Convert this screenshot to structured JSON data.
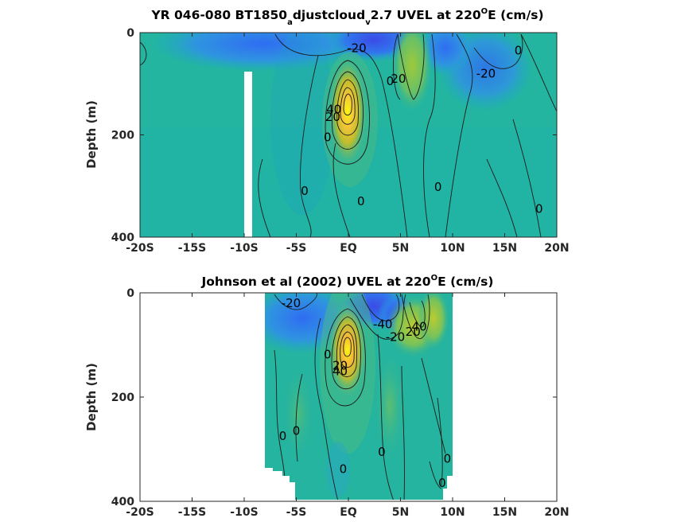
{
  "chart_data": [
    {
      "type": "heatmap",
      "title": {
        "pre": "YR 046-080 BT1850",
        "sub1": "a",
        "mid": "djustcloud",
        "sub2": "v",
        "post": "2.7 UVEL at 220",
        "sup": "O",
        "tail": "E (cm/s)"
      },
      "ylabel": "Depth (m)",
      "xlim": [
        -20,
        20
      ],
      "ylim": [
        400,
        0
      ],
      "xticklabels": [
        "-20S",
        "-15S",
        "-10S",
        "-5S",
        "EQ",
        "5N",
        "10N",
        "15N",
        "20N"
      ],
      "yticklabels": [
        "0",
        "200",
        "400"
      ],
      "data_extent_x": [
        -20,
        20
      ],
      "masked_columns": [
        {
          "x": [
            -10.1,
            -9.3
          ],
          "depth": [
            75,
            400
          ]
        }
      ],
      "features": [
        {
          "kind": "max",
          "lat": 0.0,
          "depth": 140,
          "value": 60
        },
        {
          "kind": "max",
          "lat": 6.3,
          "depth": 55,
          "value": 22
        },
        {
          "kind": "min",
          "lat": 2.0,
          "depth": 20,
          "value": -35
        },
        {
          "kind": "min",
          "lat": -6.0,
          "depth": 30,
          "value": -30
        },
        {
          "kind": "min",
          "lat": 11.0,
          "depth": 70,
          "value": -22
        }
      ],
      "contour_labels": [
        {
          "text": "-20",
          "lat": 0.8,
          "depth": 30
        },
        {
          "text": "0",
          "lat": 4.0,
          "depth": 95
        },
        {
          "text": "20",
          "lat": 4.8,
          "depth": 90
        },
        {
          "text": "0",
          "lat": 16.3,
          "depth": 35
        },
        {
          "text": "-20",
          "lat": 13.2,
          "depth": 80
        },
        {
          "text": "40",
          "lat": -1.4,
          "depth": 150
        },
        {
          "text": "20",
          "lat": -1.5,
          "depth": 165
        },
        {
          "text": "0",
          "lat": -2.0,
          "depth": 205
        },
        {
          "text": "0",
          "lat": -4.2,
          "depth": 310
        },
        {
          "text": "0",
          "lat": 1.2,
          "depth": 330
        },
        {
          "text": "0",
          "lat": 8.6,
          "depth": 302
        },
        {
          "text": "0",
          "lat": 18.3,
          "depth": 345
        }
      ]
    },
    {
      "type": "heatmap",
      "title": {
        "pre": "Johnson et al (2002) UVEL at 220",
        "sup": "O",
        "tail": "E (cm/s)"
      },
      "ylabel": "Depth (m)",
      "xlim": [
        -20,
        20
      ],
      "ylim": [
        400,
        0
      ],
      "xticklabels": [
        "-20S",
        "-15S",
        "-10S",
        "-5S",
        "EQ",
        "5N",
        "10N",
        "15N",
        "20N"
      ],
      "yticklabels": [
        "0",
        "200",
        "400"
      ],
      "data_extent_x": [
        -8,
        10
      ],
      "features": [
        {
          "kind": "max",
          "lat": 0.0,
          "depth": 105,
          "value": 70
        },
        {
          "kind": "max",
          "lat": 8.0,
          "depth": 50,
          "value": 40
        },
        {
          "kind": "min",
          "lat": 3.5,
          "depth": 15,
          "value": -45
        },
        {
          "kind": "min",
          "lat": -6.0,
          "depth": 40,
          "value": -25
        }
      ],
      "contour_labels": [
        {
          "text": "-20",
          "lat": -5.5,
          "depth": 20
        },
        {
          "text": "-40",
          "lat": 3.3,
          "depth": 60
        },
        {
          "text": "-20",
          "lat": 4.5,
          "depth": 85
        },
        {
          "text": "20",
          "lat": 6.2,
          "depth": 75
        },
        {
          "text": "40",
          "lat": 6.8,
          "depth": 65
        },
        {
          "text": "0",
          "lat": -2.0,
          "depth": 118
        },
        {
          "text": "20",
          "lat": -0.8,
          "depth": 140
        },
        {
          "text": "40",
          "lat": -0.8,
          "depth": 150
        },
        {
          "text": "0",
          "lat": -6.3,
          "depth": 275
        },
        {
          "text": "0",
          "lat": -5.0,
          "depth": 265
        },
        {
          "text": "0",
          "lat": 3.2,
          "depth": 305
        },
        {
          "text": "0",
          "lat": 9.5,
          "depth": 318
        },
        {
          "text": "0",
          "lat": -0.5,
          "depth": 338
        },
        {
          "text": "0",
          "lat": 9.0,
          "depth": 365
        }
      ]
    }
  ]
}
